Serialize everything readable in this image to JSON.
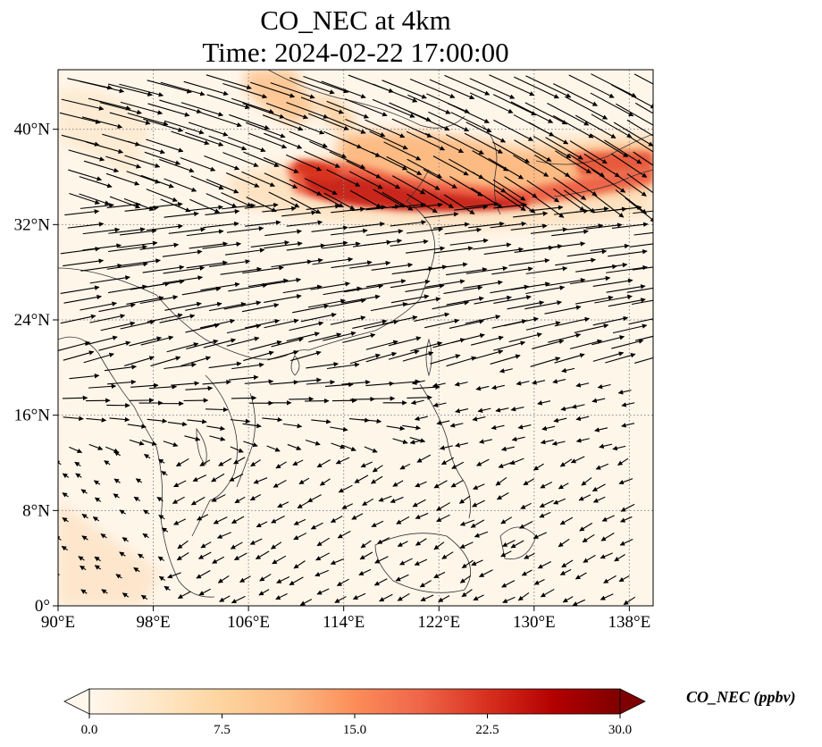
{
  "title": {
    "line1": "CO_NEC at 4km",
    "line2": "Time: 2024-02-22 17:00:00"
  },
  "map": {
    "projection": "PlateCarree",
    "lon_range": [
      90,
      140
    ],
    "lat_range": [
      0,
      45
    ],
    "lon_ticks": [
      90,
      98,
      106,
      114,
      122,
      130,
      138
    ],
    "lat_ticks": [
      0,
      8,
      16,
      24,
      32,
      40
    ],
    "lon_tick_labels": [
      "90°E",
      "98°E",
      "106°E",
      "114°E",
      "122°E",
      "130°E",
      "138°E"
    ],
    "lat_tick_labels": [
      "0°",
      "8°N",
      "16°N",
      "24°N",
      "32°N",
      "40°N"
    ],
    "gridlines": "dotted gray",
    "coastlines": true,
    "vectors": "wind arrows, strong westerlies north of 20°N, weaker easterly/northeasterly flow south"
  },
  "colorbar": {
    "cmap": "OrRd",
    "min": 0,
    "max": 30,
    "extend": "both",
    "ticks": [
      "0.0",
      "7.5",
      "15.0",
      "22.5",
      "30.0"
    ],
    "label": "CO_NEC (ppbv)",
    "colors": [
      "#fff7ec",
      "#fee8c8",
      "#fdd49e",
      "#fdbb84",
      "#fc8d59",
      "#ef6548",
      "#d7301f",
      "#b30000",
      "#7f0000"
    ]
  }
}
